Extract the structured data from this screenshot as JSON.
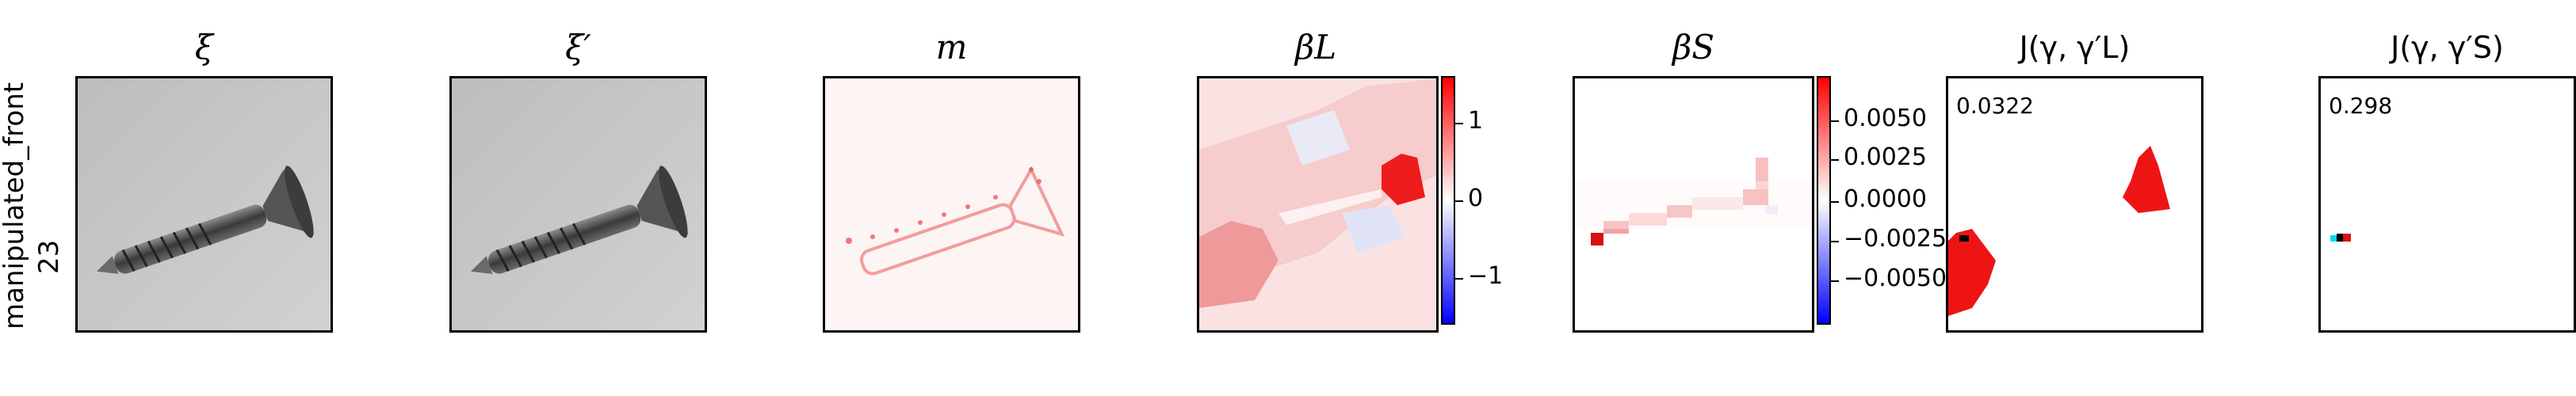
{
  "row_label": {
    "line1": "manipulated_front",
    "line2": "23"
  },
  "panels": [
    {
      "title": "ξ"
    },
    {
      "title": "ξ′"
    },
    {
      "title": "m"
    },
    {
      "title": "β_L",
      "display": "βL"
    },
    {
      "title": "β_S",
      "display": "βS"
    },
    {
      "title": "J(γ, γ′_L)",
      "display": "J(γ, γ′L)",
      "score": "0.0322"
    },
    {
      "title": "J(γ, γ′_S)",
      "display": "J(γ, γ′S)",
      "score": "0.298"
    }
  ],
  "colorbar_L": {
    "ticks": [
      "1",
      "0",
      "−1"
    ],
    "range": [
      -1.6,
      1.6
    ]
  },
  "colorbar_S": {
    "ticks": [
      "0.0050",
      "0.0025",
      "0.0000",
      "−0.0025",
      "−0.0050"
    ],
    "range": [
      -0.007,
      0.007
    ]
  },
  "colors": {
    "pos": "#ff0000",
    "neg": "#0000ff",
    "cyan": "#00ffff"
  }
}
